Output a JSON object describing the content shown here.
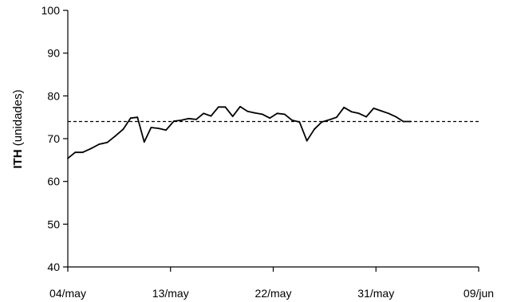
{
  "chart_data": {
    "type": "line",
    "title": "",
    "xlabel": "",
    "ylabel": {
      "bold": "ITH",
      "rest": " (unidades)"
    },
    "ylim": [
      40,
      100
    ],
    "yticks": [
      "40",
      "50",
      "60",
      "70",
      "80",
      "90",
      "100"
    ],
    "xticks": [
      {
        "label": "04/may",
        "day": 0
      },
      {
        "label": "13/may",
        "day": 9
      },
      {
        "label": "22/may",
        "day": 18
      },
      {
        "label": "31/may",
        "day": 27
      },
      {
        "label": "09/jun",
        "day": 36
      }
    ],
    "xlim": [
      0,
      36
    ],
    "grid": false,
    "legend": "none",
    "reference_line": {
      "value": 74,
      "style": "dashed"
    },
    "series": [
      {
        "values": [
          [
            0,
            65.4
          ],
          [
            0.65,
            66.8
          ],
          [
            1.3,
            66.8
          ],
          [
            2.05,
            67.7
          ],
          [
            2.75,
            68.7
          ],
          [
            3.45,
            69.1
          ],
          [
            4.15,
            70.6
          ],
          [
            4.85,
            72.2
          ],
          [
            5.5,
            74.8
          ],
          [
            6.1,
            75.0
          ],
          [
            6.7,
            69.2
          ],
          [
            7.3,
            72.6
          ],
          [
            7.95,
            72.4
          ],
          [
            8.6,
            72.0
          ],
          [
            9.3,
            74.1
          ],
          [
            9.95,
            74.3
          ],
          [
            10.6,
            74.7
          ],
          [
            11.25,
            74.5
          ],
          [
            11.9,
            75.9
          ],
          [
            12.55,
            75.3
          ],
          [
            13.2,
            77.4
          ],
          [
            13.8,
            77.4
          ],
          [
            14.45,
            75.2
          ],
          [
            15.1,
            77.5
          ],
          [
            15.75,
            76.4
          ],
          [
            16.4,
            76.0
          ],
          [
            17.05,
            75.7
          ],
          [
            17.7,
            74.8
          ],
          [
            18.35,
            75.9
          ],
          [
            19.0,
            75.7
          ],
          [
            19.65,
            74.3
          ],
          [
            20.3,
            73.9
          ],
          [
            20.95,
            69.5
          ],
          [
            21.6,
            72.2
          ],
          [
            22.25,
            73.9
          ],
          [
            22.9,
            74.4
          ],
          [
            23.55,
            75.0
          ],
          [
            24.2,
            77.3
          ],
          [
            24.85,
            76.3
          ],
          [
            25.5,
            75.9
          ],
          [
            26.15,
            75.1
          ],
          [
            26.8,
            77.1
          ],
          [
            27.45,
            76.5
          ],
          [
            28.1,
            75.9
          ],
          [
            28.75,
            75.1
          ],
          [
            29.4,
            74.0
          ],
          [
            30.05,
            74.0
          ]
        ]
      }
    ],
    "colors": {
      "line": "#000000",
      "axis": "#000000",
      "reference": "#000000"
    }
  }
}
